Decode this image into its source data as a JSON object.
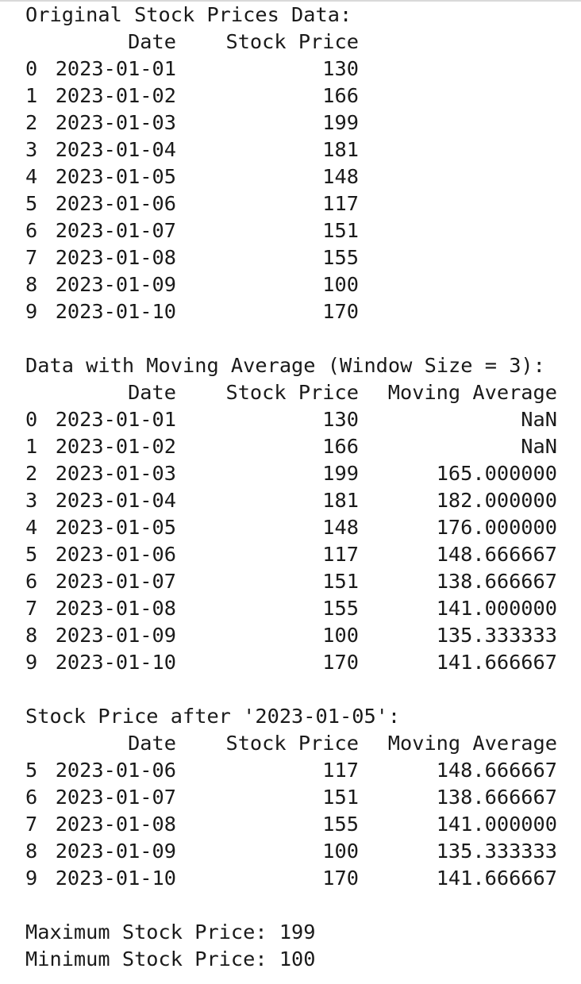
{
  "section1": {
    "title": "Original Stock Prices Data:",
    "headers": {
      "date": "Date",
      "price": "Stock Price"
    },
    "rows": [
      {
        "idx": "0",
        "date": "2023-01-01",
        "price": "130"
      },
      {
        "idx": "1",
        "date": "2023-01-02",
        "price": "166"
      },
      {
        "idx": "2",
        "date": "2023-01-03",
        "price": "199"
      },
      {
        "idx": "3",
        "date": "2023-01-04",
        "price": "181"
      },
      {
        "idx": "4",
        "date": "2023-01-05",
        "price": "148"
      },
      {
        "idx": "5",
        "date": "2023-01-06",
        "price": "117"
      },
      {
        "idx": "6",
        "date": "2023-01-07",
        "price": "151"
      },
      {
        "idx": "7",
        "date": "2023-01-08",
        "price": "155"
      },
      {
        "idx": "8",
        "date": "2023-01-09",
        "price": "100"
      },
      {
        "idx": "9",
        "date": "2023-01-10",
        "price": "170"
      }
    ]
  },
  "section2": {
    "title": "Data with Moving Average (Window Size = 3):",
    "headers": {
      "date": "Date",
      "price": "Stock Price",
      "ma": "Moving Average"
    },
    "rows": [
      {
        "idx": "0",
        "date": "2023-01-01",
        "price": "130",
        "ma": "NaN"
      },
      {
        "idx": "1",
        "date": "2023-01-02",
        "price": "166",
        "ma": "NaN"
      },
      {
        "idx": "2",
        "date": "2023-01-03",
        "price": "199",
        "ma": "165.000000"
      },
      {
        "idx": "3",
        "date": "2023-01-04",
        "price": "181",
        "ma": "182.000000"
      },
      {
        "idx": "4",
        "date": "2023-01-05",
        "price": "148",
        "ma": "176.000000"
      },
      {
        "idx": "5",
        "date": "2023-01-06",
        "price": "117",
        "ma": "148.666667"
      },
      {
        "idx": "6",
        "date": "2023-01-07",
        "price": "151",
        "ma": "138.666667"
      },
      {
        "idx": "7",
        "date": "2023-01-08",
        "price": "155",
        "ma": "141.000000"
      },
      {
        "idx": "8",
        "date": "2023-01-09",
        "price": "100",
        "ma": "135.333333"
      },
      {
        "idx": "9",
        "date": "2023-01-10",
        "price": "170",
        "ma": "141.666667"
      }
    ]
  },
  "section3": {
    "title": "Stock Price after '2023-01-05':",
    "headers": {
      "date": "Date",
      "price": "Stock Price",
      "ma": "Moving Average"
    },
    "rows": [
      {
        "idx": "5",
        "date": "2023-01-06",
        "price": "117",
        "ma": "148.666667"
      },
      {
        "idx": "6",
        "date": "2023-01-07",
        "price": "151",
        "ma": "138.666667"
      },
      {
        "idx": "7",
        "date": "2023-01-08",
        "price": "155",
        "ma": "141.000000"
      },
      {
        "idx": "8",
        "date": "2023-01-09",
        "price": "100",
        "ma": "135.333333"
      },
      {
        "idx": "9",
        "date": "2023-01-10",
        "price": "170",
        "ma": "141.666667"
      }
    ]
  },
  "summary": {
    "max_line": "Maximum Stock Price: 199",
    "min_line": "Minimum Stock Price: 100"
  }
}
